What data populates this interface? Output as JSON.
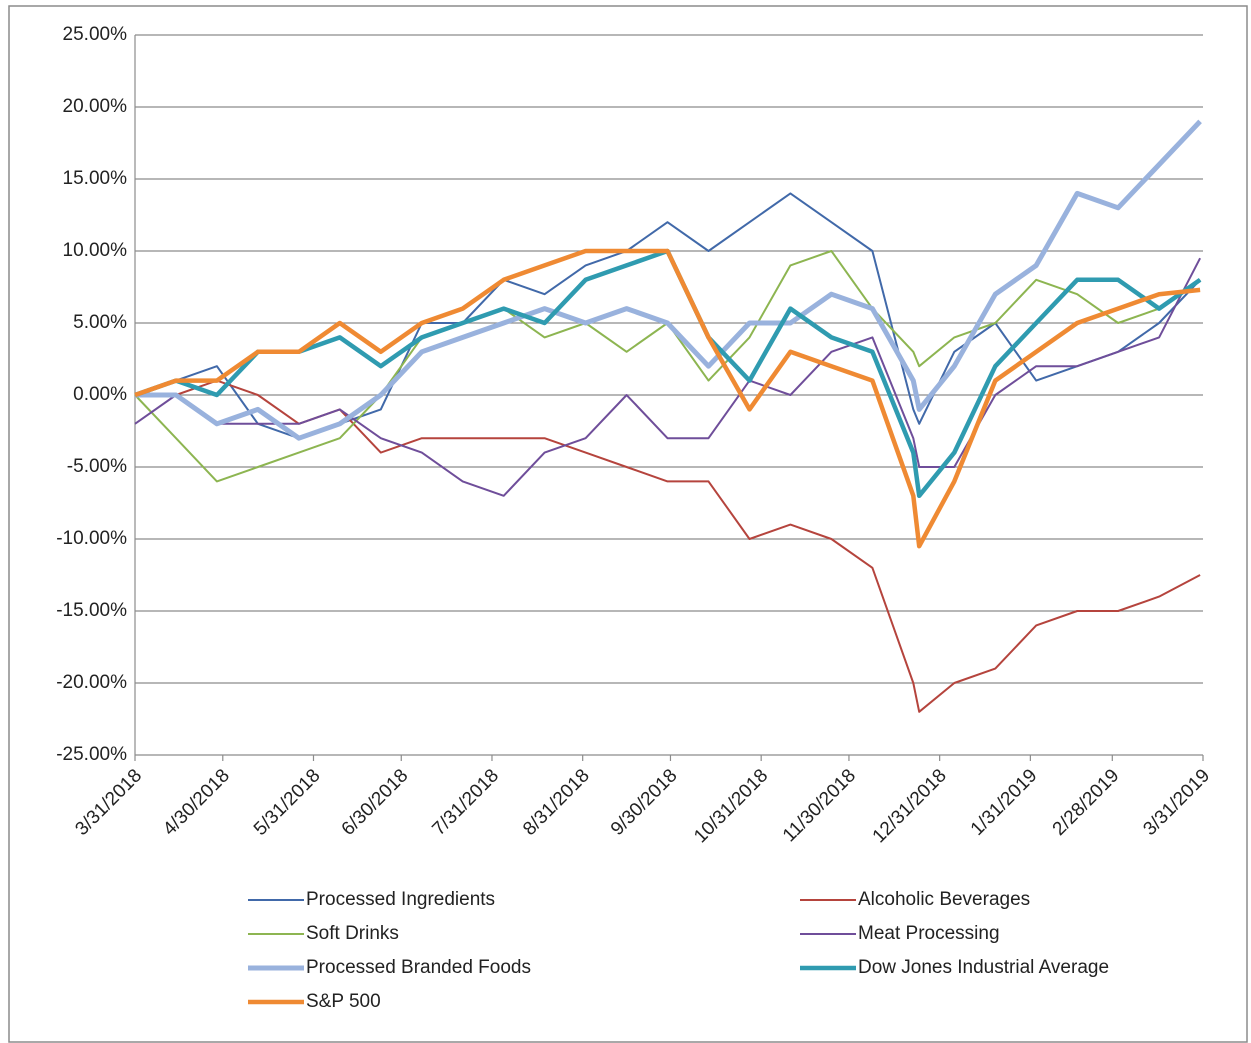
{
  "chart_data": {
    "type": "line",
    "x": [
      "3/31/2018",
      "4/14/2018",
      "4/28/2018",
      "5/12/2018",
      "5/26/2018",
      "6/9/2018",
      "6/23/2018",
      "7/7/2018",
      "7/21/2018",
      "8/4/2018",
      "8/18/2018",
      "9/1/2018",
      "9/15/2018",
      "9/29/2018",
      "10/13/2018",
      "10/27/2018",
      "11/10/2018",
      "11/24/2018",
      "12/8/2018",
      "12/22/2018",
      "12/24/2018",
      "1/5/2019",
      "1/19/2019",
      "2/2/2019",
      "2/16/2019",
      "3/2/2019",
      "3/16/2019",
      "3/30/2019"
    ],
    "xlim": [
      "3/31/2018",
      "3/31/2019"
    ],
    "xticks": [
      "3/31/2018",
      "4/30/2018",
      "5/31/2018",
      "6/30/2018",
      "7/31/2018",
      "8/31/2018",
      "9/30/2018",
      "10/31/2018",
      "11/30/2018",
      "12/31/2018",
      "1/31/2019",
      "2/28/2019",
      "3/31/2019"
    ],
    "ylim": [
      -25,
      25
    ],
    "yticks": [
      {
        "value": -25,
        "label": "-25.00%"
      },
      {
        "value": -20,
        "label": "-20.00%"
      },
      {
        "value": -15,
        "label": "-15.00%"
      },
      {
        "value": -10,
        "label": "-10.00%"
      },
      {
        "value": -5,
        "label": "-5.00%"
      },
      {
        "value": 0,
        "label": "0.00%"
      },
      {
        "value": 5,
        "label": "5.00%"
      },
      {
        "value": 10,
        "label": "10.00%"
      },
      {
        "value": 15,
        "label": "15.00%"
      },
      {
        "value": 20,
        "label": "20.00%"
      },
      {
        "value": 25,
        "label": "25.00%"
      }
    ],
    "grid": true,
    "legend": "bottom",
    "series": [
      {
        "name": "Processed Ingredients",
        "color": "#4169a9",
        "width": 2,
        "values": [
          0,
          1,
          2,
          -2,
          -3,
          -2,
          -1,
          5,
          5,
          8,
          7,
          9,
          10,
          12,
          10,
          12,
          14,
          12,
          10,
          -1,
          -2,
          3,
          5,
          1,
          2,
          3,
          5,
          8
        ]
      },
      {
        "name": "Alcoholic Beverages",
        "color": "#b5443d",
        "width": 2,
        "values": [
          0,
          0,
          1,
          0,
          -2,
          -1,
          -4,
          -3,
          -3,
          -3,
          -3,
          -4,
          -5,
          -6,
          -6,
          -10,
          -9,
          -10,
          -12,
          -20,
          -22,
          -20,
          -19,
          -16,
          -15,
          -15,
          -14,
          -12.5
        ]
      },
      {
        "name": "Soft Drinks",
        "color": "#8db551",
        "width": 2,
        "values": [
          0,
          -3,
          -6,
          -5,
          -4,
          -3,
          0,
          4,
          5,
          6,
          4,
          5,
          3,
          5,
          1,
          4,
          9,
          10,
          6,
          3,
          2,
          4,
          5,
          8,
          7,
          5,
          6,
          8
        ]
      },
      {
        "name": "Meat Processing",
        "color": "#6f4e9a",
        "width": 2,
        "values": [
          -2,
          0,
          -2,
          -2,
          -2,
          -1,
          -3,
          -4,
          -6,
          -7,
          -4,
          -3,
          0,
          -3,
          -3,
          1,
          0,
          3,
          4,
          -3,
          -5,
          -5,
          0,
          2,
          2,
          3,
          4,
          9.5
        ]
      },
      {
        "name": "Processed Branded Foods",
        "color": "#99b2dd",
        "width": 5,
        "values": [
          0,
          0,
          -2,
          -1,
          -3,
          -2,
          0,
          3,
          4,
          5,
          6,
          5,
          6,
          5,
          2,
          5,
          5,
          7,
          6,
          1,
          -1,
          2,
          7,
          9,
          14,
          13,
          16,
          19
        ]
      },
      {
        "name": "Dow Jones Industrial Average",
        "color": "#2f9bb0",
        "width": 4.5,
        "values": [
          0,
          1,
          0,
          3,
          3,
          4,
          2,
          4,
          5,
          6,
          5,
          8,
          9,
          10,
          4,
          1,
          6,
          4,
          3,
          -4,
          -7,
          -4,
          2,
          5,
          8,
          8,
          6,
          8
        ]
      },
      {
        "name": "S&P 500",
        "color": "#ef8a33",
        "width": 4.5,
        "values": [
          0,
          1,
          1,
          3,
          3,
          5,
          3,
          5,
          6,
          8,
          9,
          10,
          10,
          10,
          4,
          -1,
          3,
          2,
          1,
          -7,
          -10.5,
          -6,
          1,
          3,
          5,
          6,
          7,
          7.3
        ]
      }
    ]
  }
}
